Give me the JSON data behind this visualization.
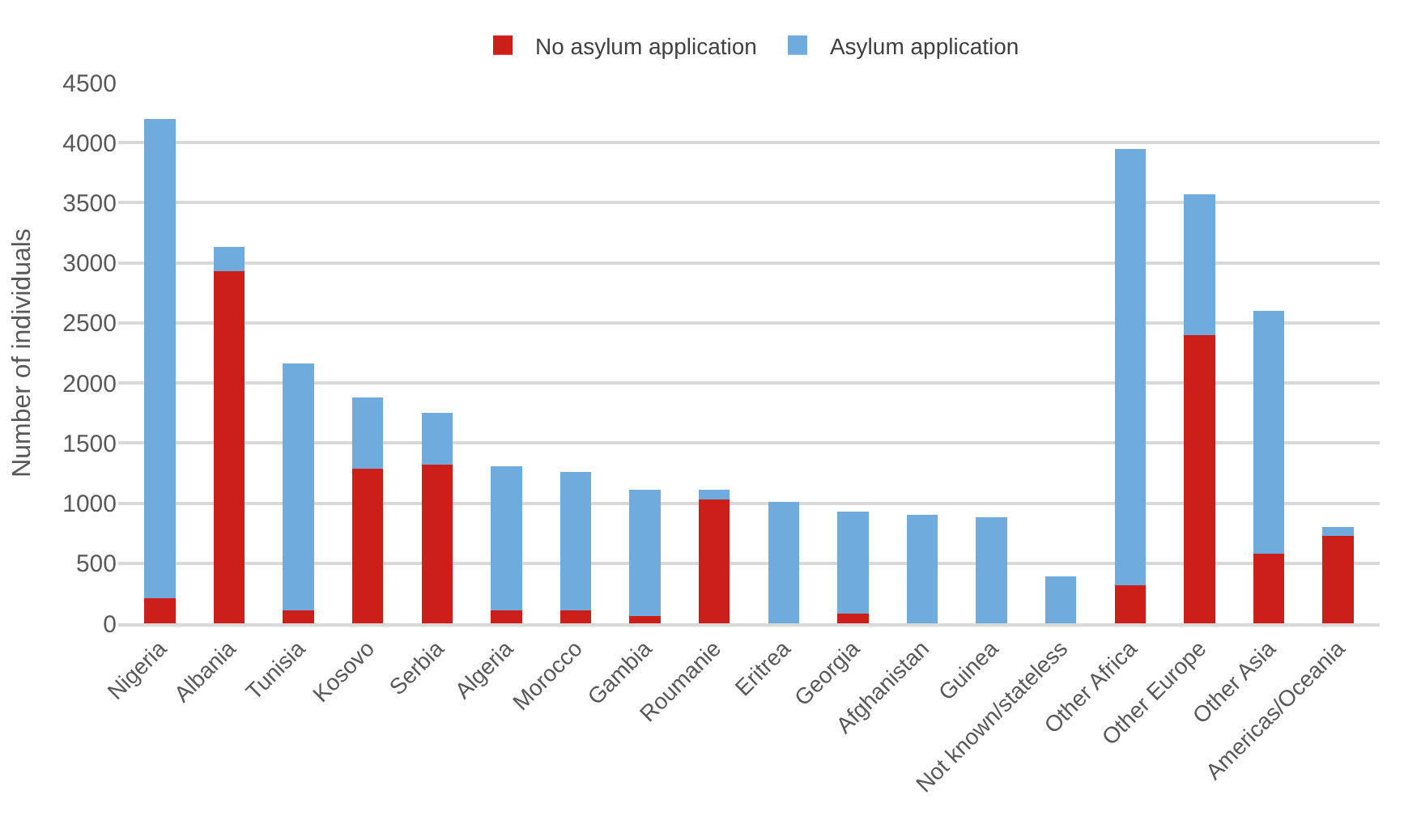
{
  "chart_data": {
    "type": "bar",
    "stacked": true,
    "ylabel": "Number of individuals",
    "categories": [
      "Nigeria",
      "Albania",
      "Tunisia",
      "Kosovo",
      "Serbia",
      "Algeria",
      "Morocco",
      "Gambia",
      "Roumanie",
      "Eritrea",
      "Georgia",
      "Afghanistan",
      "Guinea",
      "Not known/stateless",
      "Other Africa",
      "Other Europe",
      "Other Asia",
      "Americas/Oceania"
    ],
    "series": [
      {
        "name": "No asylum application",
        "color": "#cc1f1a",
        "values": [
          210,
          2930,
          110,
          1290,
          1320,
          110,
          110,
          60,
          1030,
          0,
          80,
          0,
          0,
          0,
          320,
          2400,
          580,
          730
        ]
      },
      {
        "name": "Asylum application",
        "color": "#6fabdc",
        "values": [
          3990,
          200,
          2050,
          590,
          430,
          1200,
          1150,
          1050,
          80,
          1010,
          850,
          900,
          880,
          390,
          3630,
          1170,
          2020,
          70
        ]
      }
    ],
    "ylim": [
      0,
      4500
    ],
    "yticks": [
      0,
      500,
      1000,
      1500,
      2000,
      2500,
      3000,
      3500,
      4000,
      4500
    ],
    "grid": "y",
    "legend": "top"
  }
}
